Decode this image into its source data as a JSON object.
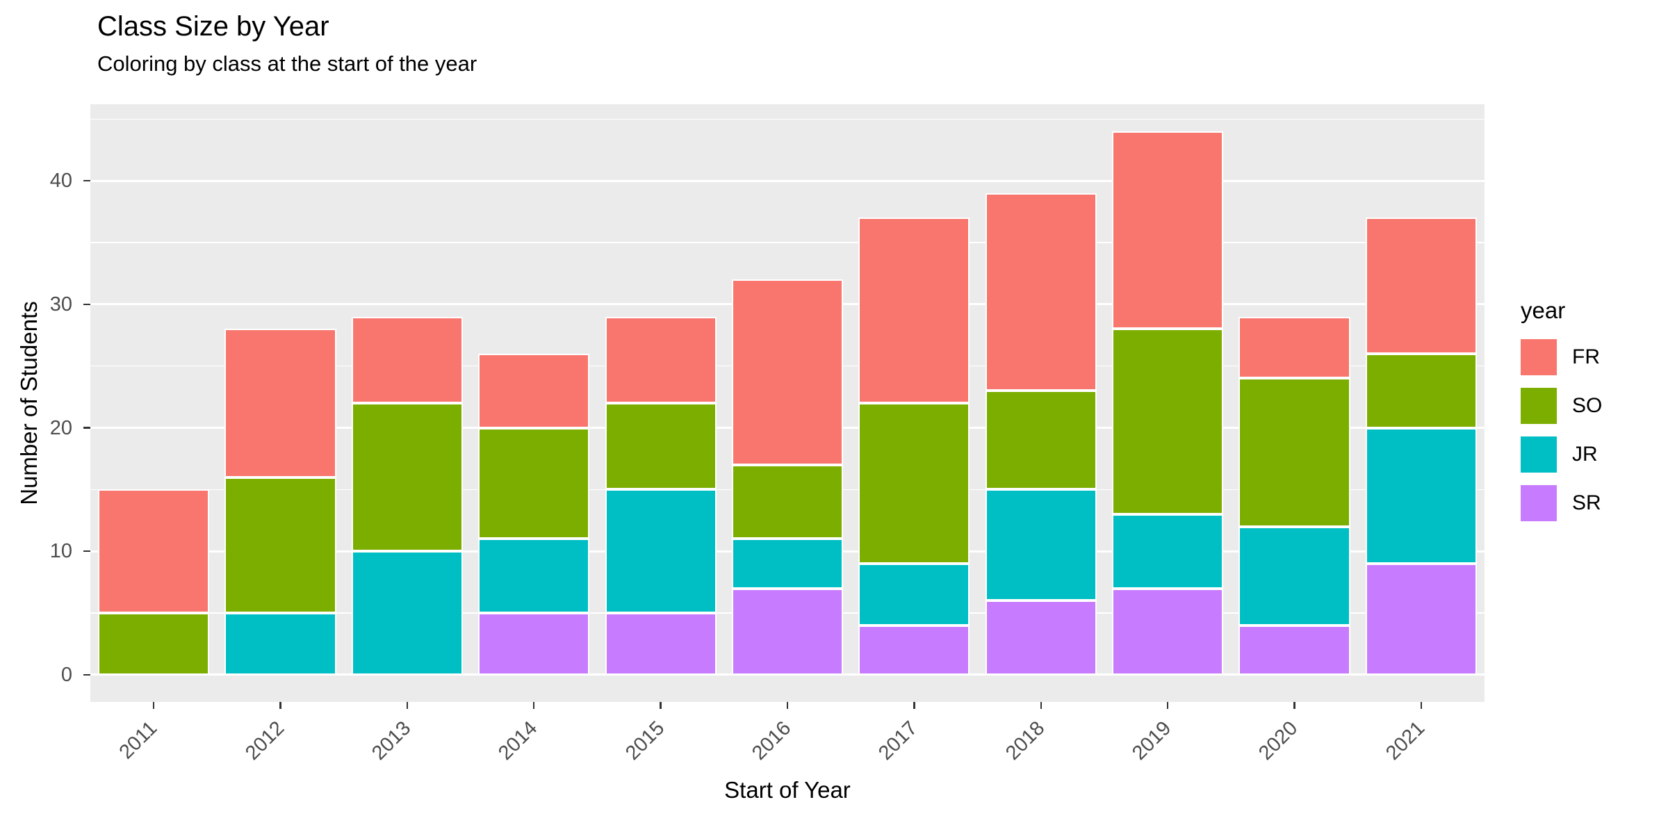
{
  "chart_data": {
    "type": "bar",
    "stacked": true,
    "title": "Class Size by Year",
    "subtitle": "Coloring by class at the start of the year",
    "xlabel": "Start of Year",
    "ylabel": "Number of Students",
    "legend_title": "year",
    "legend_position": "right",
    "categories": [
      "2011",
      "2012",
      "2013",
      "2014",
      "2015",
      "2016",
      "2017",
      "2018",
      "2019",
      "2020",
      "2021"
    ],
    "series": [
      {
        "name": "FR",
        "color": "#F8766D",
        "values": [
          10,
          12,
          7,
          6,
          7,
          15,
          15,
          16,
          16,
          5,
          11
        ]
      },
      {
        "name": "SO",
        "color": "#7CAE00",
        "values": [
          5,
          11,
          12,
          9,
          7,
          6,
          13,
          8,
          15,
          12,
          6
        ]
      },
      {
        "name": "JR",
        "color": "#00BFC4",
        "values": [
          0,
          5,
          10,
          6,
          10,
          4,
          5,
          9,
          6,
          8,
          11
        ]
      },
      {
        "name": "SR",
        "color": "#C77CFF",
        "values": [
          0,
          0,
          0,
          5,
          5,
          7,
          4,
          6,
          7,
          4,
          9
        ]
      }
    ],
    "stack_order_bottom_to_top": [
      "SR",
      "JR",
      "SO",
      "FR"
    ],
    "totals": [
      15,
      28,
      29,
      26,
      29,
      32,
      37,
      39,
      44,
      29,
      37
    ],
    "y_ticks": [
      0,
      10,
      20,
      30,
      40
    ],
    "y_minor_ticks": [
      5,
      15,
      25,
      35,
      45
    ],
    "ylim": [
      0,
      44
    ],
    "grid": true,
    "panel_background": "#EBEBEB",
    "grid_color": "#FFFFFF",
    "bar_border_color": "#FFFFFF",
    "tick_label_color": "#4D4D4D"
  }
}
